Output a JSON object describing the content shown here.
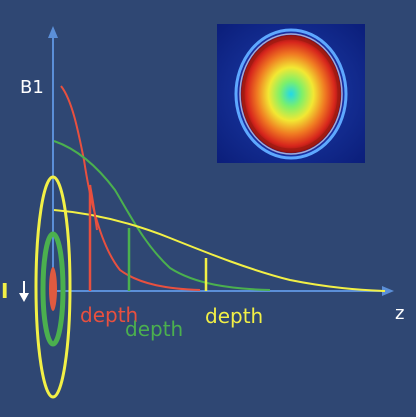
{
  "axes": {
    "y_label": "B1",
    "x_label": "z"
  },
  "current_label": "I",
  "depth_labels": {
    "small_coil": "depth",
    "medium_coil": "depth",
    "large_coil": "depth"
  },
  "colors": {
    "background": "#2f4773",
    "axis": "#5b8fd8",
    "small_coil": "#e8503f",
    "medium_coil": "#4bb04e",
    "large_coil": "#f2f046",
    "text": "#ffffff"
  },
  "inset_image": {
    "description_icon": "brain-mri-heatmap"
  }
}
